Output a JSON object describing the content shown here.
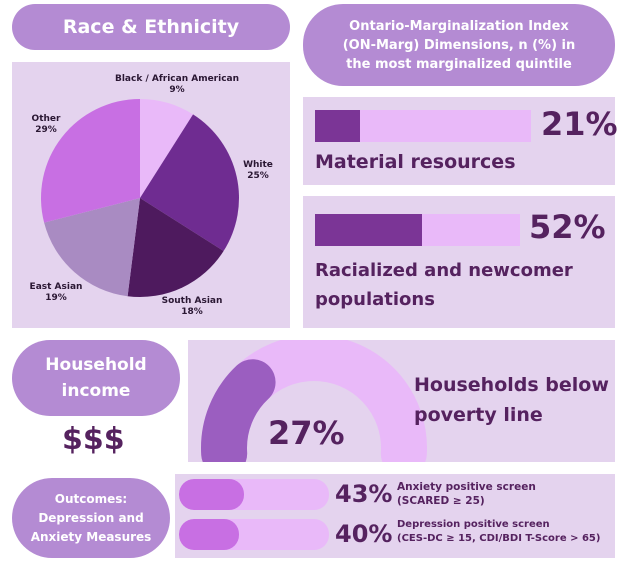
{
  "race": {
    "title": "Race & Ethnicity",
    "chart_data": {
      "type": "pie",
      "slices": [
        {
          "name": "Black / African American",
          "pct_label": "9%",
          "value": 9,
          "color": "#e9b9f9"
        },
        {
          "name": "White",
          "pct_label": "25%",
          "value": 25,
          "color": "#6f2c91"
        },
        {
          "name": "South Asian",
          "pct_label": "18%",
          "value": 18,
          "color": "#4e1a5e"
        },
        {
          "name": "East Asian",
          "pct_label": "19%",
          "value": 19,
          "color": "#a98bc2"
        },
        {
          "name": "Other",
          "pct_label": "29%",
          "value": 29,
          "color": "#c86fe3"
        }
      ]
    }
  },
  "onmarg": {
    "title_lines": [
      "Ontario-Marginalization Index",
      "(ON-Marg) Dimensions, n (%) in",
      "the most marginalized quintile"
    ],
    "material": {
      "pct_label": "21%",
      "value": 21,
      "label": "Material resources"
    },
    "racialized": {
      "pct_label": "52%",
      "value": 52,
      "label_lines": [
        "Racialized and newcomer",
        "populations"
      ]
    }
  },
  "household": {
    "title_lines": [
      "Household",
      "income"
    ],
    "symbol": "$$$",
    "poverty": {
      "pct_label": "27%",
      "value": 27,
      "label_lines": [
        "Households below",
        "poverty line"
      ]
    }
  },
  "outcomes": {
    "title_lines": [
      "Outcomes:",
      "Depression and",
      "Anxiety Measures"
    ],
    "anxiety": {
      "pct_label": "43%",
      "value": 43,
      "line1": "Anxiety positive screen",
      "line2": "(SCARED ≥ 25)"
    },
    "depression": {
      "pct_label": "40%",
      "value": 40,
      "line1": "Depression positive screen",
      "line2": "(CES-DC ≥ 15, CDI/BDI T-Score > 65)"
    }
  },
  "colors": {
    "dark": "#55225f",
    "fill": "#7b3596",
    "track": "#e9b9f9",
    "panel": "#e4d3ee",
    "pill": "#b48bd3"
  }
}
